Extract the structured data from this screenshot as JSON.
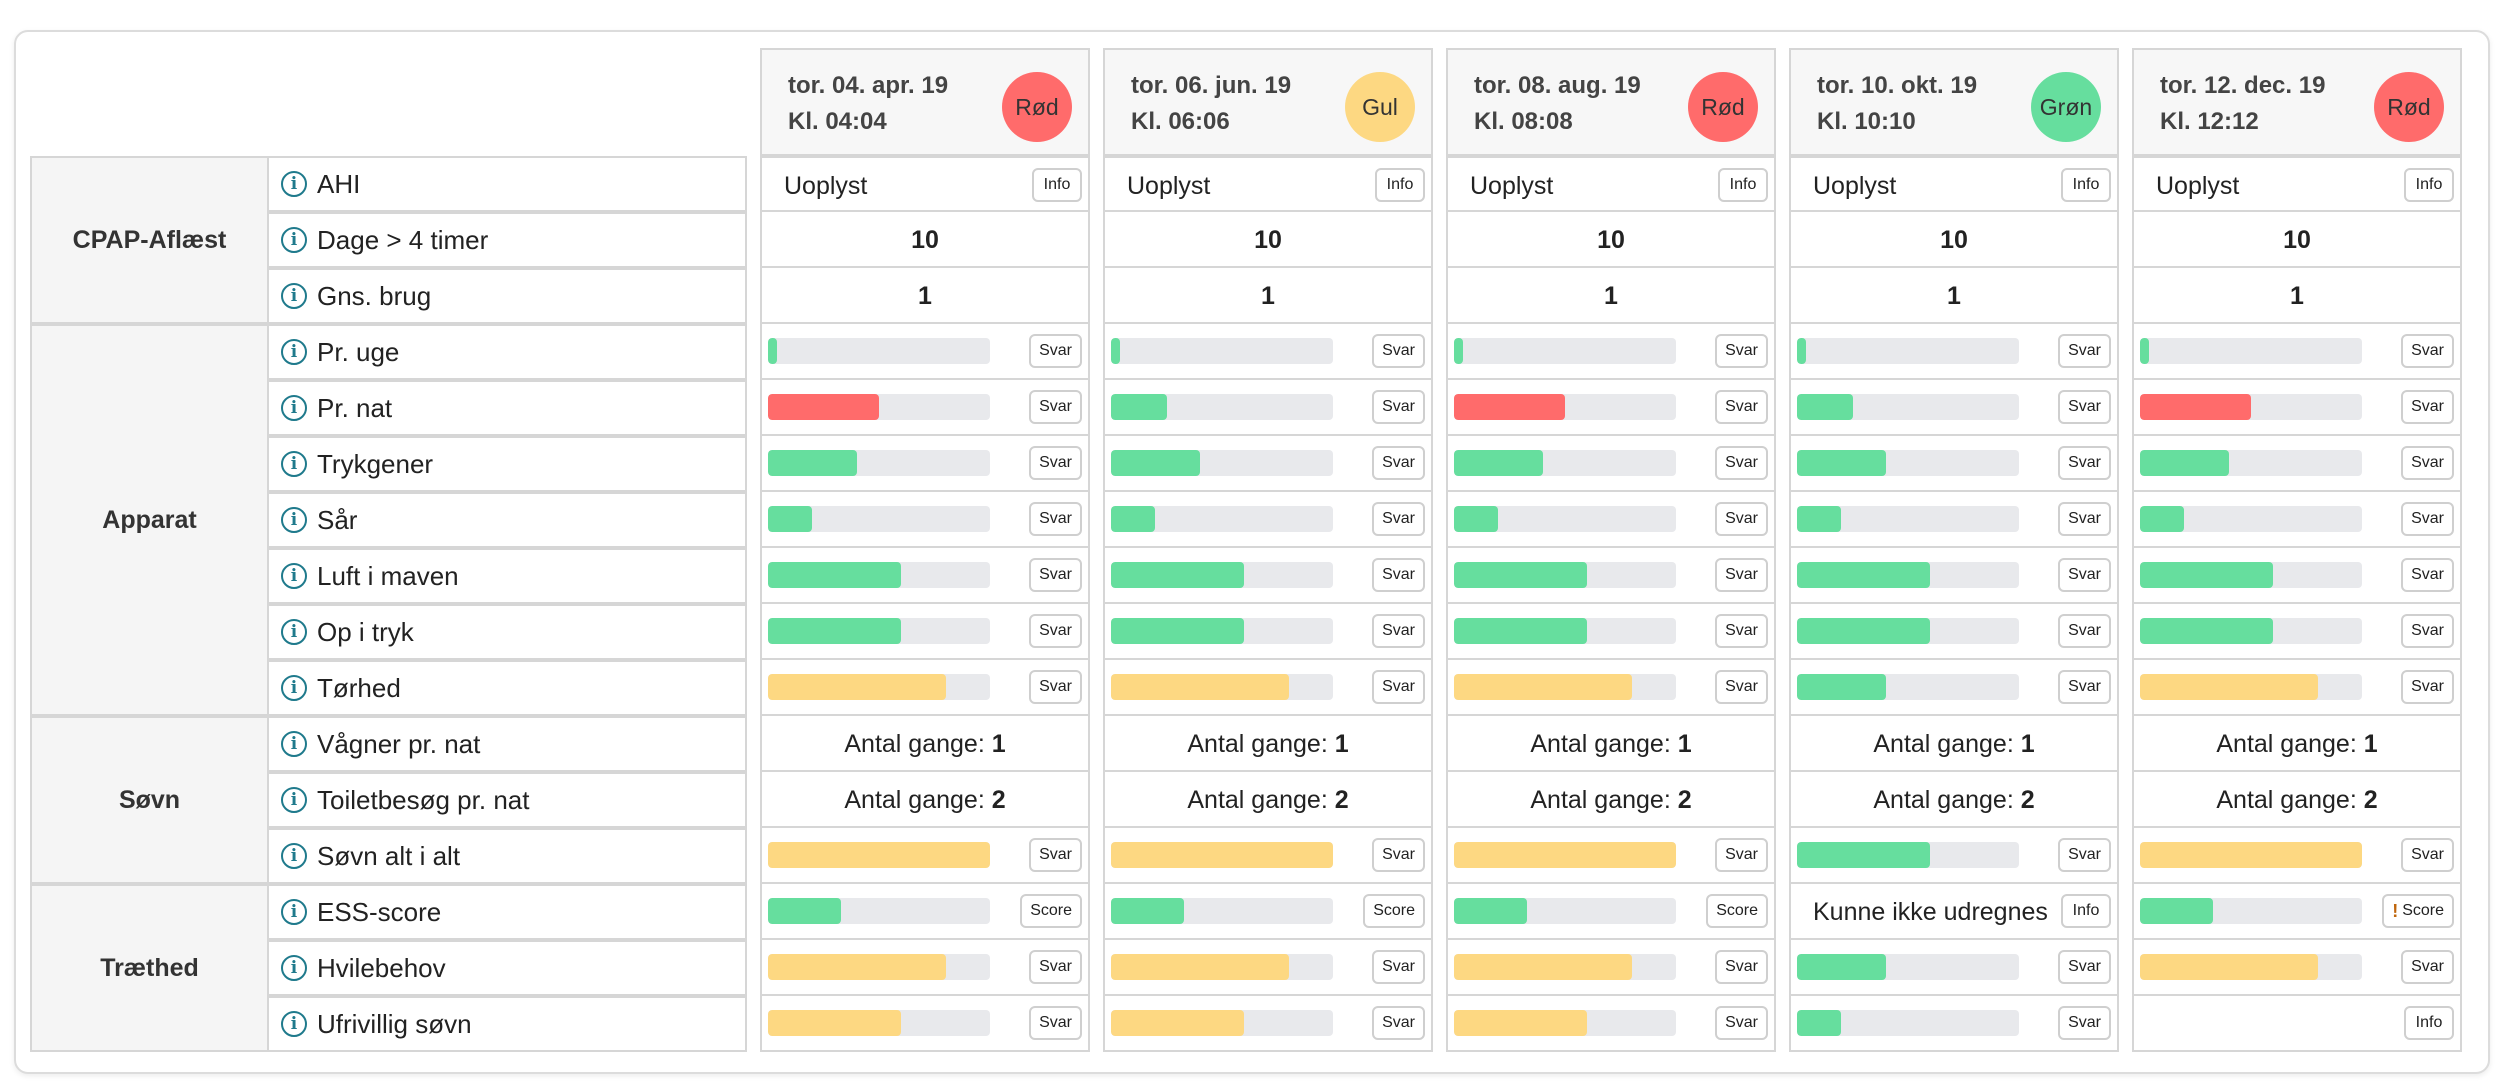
{
  "colors": {
    "green": "#66de9e",
    "red": "#ff6b6b",
    "yellow": "#fdd882",
    "track": "#e8e9ec",
    "info_icon": "#1f7a8c"
  },
  "groups": [
    {
      "name": "CPAP-Aflæst",
      "rows": [
        "AHI",
        "Dage > 4 timer",
        "Gns. brug"
      ]
    },
    {
      "name": "Apparat",
      "rows": [
        "Pr. uge",
        "Pr. nat",
        "Trykgener",
        "Sår",
        "Luft i maven",
        "Op i tryk",
        "Tørhed"
      ]
    },
    {
      "name": "Søvn",
      "rows": [
        "Vågner pr. nat",
        "Toiletbesøg pr. nat",
        "Søvn alt i alt"
      ]
    },
    {
      "name": "Træthed",
      "rows": [
        "ESS-score",
        "Hvilebehov",
        "Ufrivillig søvn"
      ]
    }
  ],
  "labels": {
    "info_button": "Info",
    "answer_button": "Svar",
    "score_button": "Score",
    "count_prefix": "Antal gange: "
  },
  "columns": [
    {
      "date": "tor. 04. apr. 19",
      "time": "Kl. 04:04",
      "status": {
        "label": "Rød",
        "color": "red"
      },
      "cells": [
        {
          "type": "text",
          "text": "Uoplyst",
          "button": "Info"
        },
        {
          "type": "value",
          "value": "10"
        },
        {
          "type": "value",
          "value": "1"
        },
        {
          "type": "bar",
          "fraction": 0.04,
          "color": "green",
          "button": "Svar"
        },
        {
          "type": "bar",
          "fraction": 0.5,
          "color": "red",
          "button": "Svar"
        },
        {
          "type": "bar",
          "fraction": 0.4,
          "color": "green",
          "button": "Svar"
        },
        {
          "type": "bar",
          "fraction": 0.2,
          "color": "green",
          "button": "Svar"
        },
        {
          "type": "bar",
          "fraction": 0.6,
          "color": "green",
          "button": "Svar"
        },
        {
          "type": "bar",
          "fraction": 0.6,
          "color": "green",
          "button": "Svar"
        },
        {
          "type": "bar",
          "fraction": 0.8,
          "color": "yellow",
          "button": "Svar"
        },
        {
          "type": "count",
          "value": "1"
        },
        {
          "type": "count",
          "value": "2"
        },
        {
          "type": "bar",
          "fraction": 1.0,
          "color": "yellow",
          "button": "Svar"
        },
        {
          "type": "bar",
          "fraction": 0.33,
          "color": "green",
          "button": "Score"
        },
        {
          "type": "bar",
          "fraction": 0.8,
          "color": "yellow",
          "button": "Svar"
        },
        {
          "type": "bar",
          "fraction": 0.6,
          "color": "yellow",
          "button": "Svar"
        }
      ]
    },
    {
      "date": "tor. 06. jun. 19",
      "time": "Kl. 06:06",
      "status": {
        "label": "Gul",
        "color": "yellow"
      },
      "cells": [
        {
          "type": "text",
          "text": "Uoplyst",
          "button": "Info"
        },
        {
          "type": "value",
          "value": "10"
        },
        {
          "type": "value",
          "value": "1"
        },
        {
          "type": "bar",
          "fraction": 0.04,
          "color": "green",
          "button": "Svar"
        },
        {
          "type": "bar",
          "fraction": 0.25,
          "color": "green",
          "button": "Svar"
        },
        {
          "type": "bar",
          "fraction": 0.4,
          "color": "green",
          "button": "Svar"
        },
        {
          "type": "bar",
          "fraction": 0.2,
          "color": "green",
          "button": "Svar"
        },
        {
          "type": "bar",
          "fraction": 0.6,
          "color": "green",
          "button": "Svar"
        },
        {
          "type": "bar",
          "fraction": 0.6,
          "color": "green",
          "button": "Svar"
        },
        {
          "type": "bar",
          "fraction": 0.8,
          "color": "yellow",
          "button": "Svar"
        },
        {
          "type": "count",
          "value": "1"
        },
        {
          "type": "count",
          "value": "2"
        },
        {
          "type": "bar",
          "fraction": 1.0,
          "color": "yellow",
          "button": "Svar"
        },
        {
          "type": "bar",
          "fraction": 0.33,
          "color": "green",
          "button": "Score"
        },
        {
          "type": "bar",
          "fraction": 0.8,
          "color": "yellow",
          "button": "Svar"
        },
        {
          "type": "bar",
          "fraction": 0.6,
          "color": "yellow",
          "button": "Svar"
        }
      ]
    },
    {
      "date": "tor. 08. aug. 19",
      "time": "Kl. 08:08",
      "status": {
        "label": "Rød",
        "color": "red"
      },
      "cells": [
        {
          "type": "text",
          "text": "Uoplyst",
          "button": "Info"
        },
        {
          "type": "value",
          "value": "10"
        },
        {
          "type": "value",
          "value": "1"
        },
        {
          "type": "bar",
          "fraction": 0.04,
          "color": "green",
          "button": "Svar"
        },
        {
          "type": "bar",
          "fraction": 0.5,
          "color": "red",
          "button": "Svar"
        },
        {
          "type": "bar",
          "fraction": 0.4,
          "color": "green",
          "button": "Svar"
        },
        {
          "type": "bar",
          "fraction": 0.2,
          "color": "green",
          "button": "Svar"
        },
        {
          "type": "bar",
          "fraction": 0.6,
          "color": "green",
          "button": "Svar"
        },
        {
          "type": "bar",
          "fraction": 0.6,
          "color": "green",
          "button": "Svar"
        },
        {
          "type": "bar",
          "fraction": 0.8,
          "color": "yellow",
          "button": "Svar"
        },
        {
          "type": "count",
          "value": "1"
        },
        {
          "type": "count",
          "value": "2"
        },
        {
          "type": "bar",
          "fraction": 1.0,
          "color": "yellow",
          "button": "Svar"
        },
        {
          "type": "bar",
          "fraction": 0.33,
          "color": "green",
          "button": "Score"
        },
        {
          "type": "bar",
          "fraction": 0.8,
          "color": "yellow",
          "button": "Svar"
        },
        {
          "type": "bar",
          "fraction": 0.6,
          "color": "yellow",
          "button": "Svar"
        }
      ]
    },
    {
      "date": "tor. 10. okt. 19",
      "time": "Kl. 10:10",
      "status": {
        "label": "Grøn",
        "color": "green"
      },
      "cells": [
        {
          "type": "text",
          "text": "Uoplyst",
          "button": "Info"
        },
        {
          "type": "value",
          "value": "10"
        },
        {
          "type": "value",
          "value": "1"
        },
        {
          "type": "bar",
          "fraction": 0.04,
          "color": "green",
          "button": "Svar"
        },
        {
          "type": "bar",
          "fraction": 0.25,
          "color": "green",
          "button": "Svar"
        },
        {
          "type": "bar",
          "fraction": 0.4,
          "color": "green",
          "button": "Svar"
        },
        {
          "type": "bar",
          "fraction": 0.2,
          "color": "green",
          "button": "Svar"
        },
        {
          "type": "bar",
          "fraction": 0.6,
          "color": "green",
          "button": "Svar"
        },
        {
          "type": "bar",
          "fraction": 0.6,
          "color": "green",
          "button": "Svar"
        },
        {
          "type": "bar",
          "fraction": 0.4,
          "color": "green",
          "button": "Svar"
        },
        {
          "type": "count",
          "value": "1"
        },
        {
          "type": "count",
          "value": "2"
        },
        {
          "type": "bar",
          "fraction": 0.6,
          "color": "green",
          "button": "Svar"
        },
        {
          "type": "text",
          "text": "Kunne ikke udregnes",
          "button": "Info"
        },
        {
          "type": "bar",
          "fraction": 0.4,
          "color": "green",
          "button": "Svar"
        },
        {
          "type": "bar",
          "fraction": 0.2,
          "color": "green",
          "button": "Svar"
        }
      ]
    },
    {
      "date": "tor. 12. dec. 19",
      "time": "Kl. 12:12",
      "status": {
        "label": "Rød",
        "color": "red"
      },
      "cells": [
        {
          "type": "text",
          "text": "Uoplyst",
          "button": "Info"
        },
        {
          "type": "value",
          "value": "10"
        },
        {
          "type": "value",
          "value": "1"
        },
        {
          "type": "bar",
          "fraction": 0.04,
          "color": "green",
          "button": "Svar"
        },
        {
          "type": "bar",
          "fraction": 0.5,
          "color": "red",
          "button": "Svar"
        },
        {
          "type": "bar",
          "fraction": 0.4,
          "color": "green",
          "button": "Svar"
        },
        {
          "type": "bar",
          "fraction": 0.2,
          "color": "green",
          "button": "Svar"
        },
        {
          "type": "bar",
          "fraction": 0.6,
          "color": "green",
          "button": "Svar"
        },
        {
          "type": "bar",
          "fraction": 0.6,
          "color": "green",
          "button": "Svar"
        },
        {
          "type": "bar",
          "fraction": 0.8,
          "color": "yellow",
          "button": "Svar"
        },
        {
          "type": "count",
          "value": "1"
        },
        {
          "type": "count",
          "value": "2"
        },
        {
          "type": "bar",
          "fraction": 1.0,
          "color": "yellow",
          "button": "Svar"
        },
        {
          "type": "bar",
          "fraction": 0.33,
          "color": "green",
          "button": "Score",
          "warning": "!"
        },
        {
          "type": "bar",
          "fraction": 0.8,
          "color": "yellow",
          "button": "Svar"
        },
        {
          "type": "empty",
          "button": "Info"
        }
      ]
    }
  ]
}
